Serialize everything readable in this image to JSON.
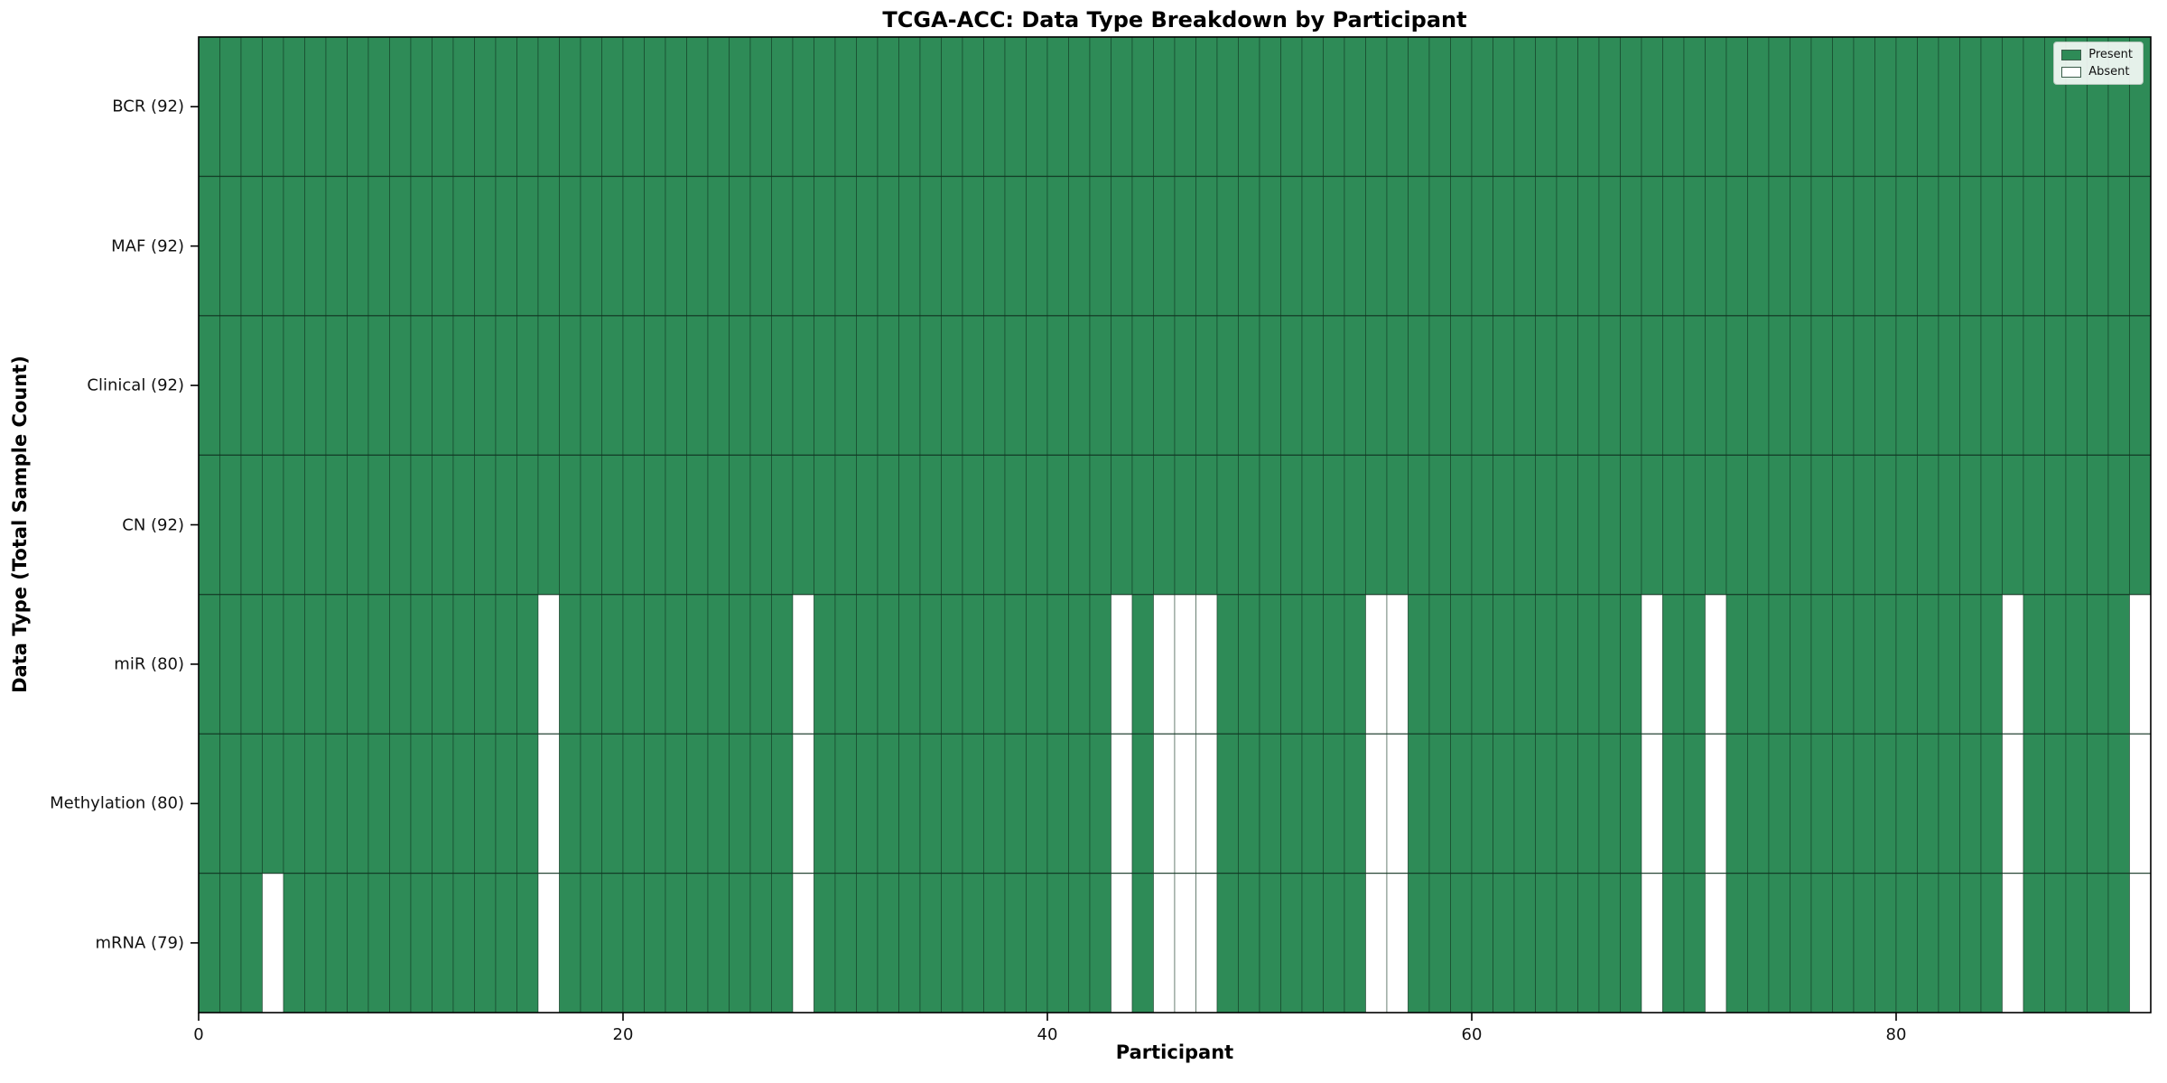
{
  "chart_data": {
    "type": "heatmap",
    "title": "TCGA-ACC: Data Type Breakdown by Participant",
    "xlabel": "Participant",
    "ylabel": "Data Type (Total Sample Count)",
    "n_participants": 92,
    "x_ticks": [
      0,
      20,
      40,
      60,
      80
    ],
    "rows": [
      {
        "label": "BCR (92)",
        "present_count": 92,
        "absent_participants": []
      },
      {
        "label": "MAF (92)",
        "present_count": 92,
        "absent_participants": []
      },
      {
        "label": "Clinical (92)",
        "present_count": 92,
        "absent_participants": []
      },
      {
        "label": "CN (92)",
        "present_count": 92,
        "absent_participants": []
      },
      {
        "label": "miR (80)",
        "present_count": 80,
        "absent_participants": [
          16,
          28,
          43,
          45,
          46,
          47,
          55,
          56,
          68,
          71,
          85,
          91
        ]
      },
      {
        "label": "Methylation (80)",
        "present_count": 80,
        "absent_participants": [
          16,
          28,
          43,
          45,
          46,
          47,
          55,
          56,
          68,
          71,
          85,
          91
        ]
      },
      {
        "label": "mRNA (79)",
        "present_count": 79,
        "absent_participants": [
          3,
          16,
          28,
          43,
          45,
          46,
          47,
          55,
          56,
          68,
          71,
          85,
          91
        ]
      }
    ],
    "legend": [
      {
        "label": "Present",
        "color": "#2e8b57"
      },
      {
        "label": "Absent",
        "color": "#ffffff"
      }
    ],
    "colors": {
      "present": "#2e8b57",
      "absent": "#ffffff",
      "cell_edge": "#0f3320",
      "axis": "#000000",
      "background": "#ffffff"
    }
  }
}
